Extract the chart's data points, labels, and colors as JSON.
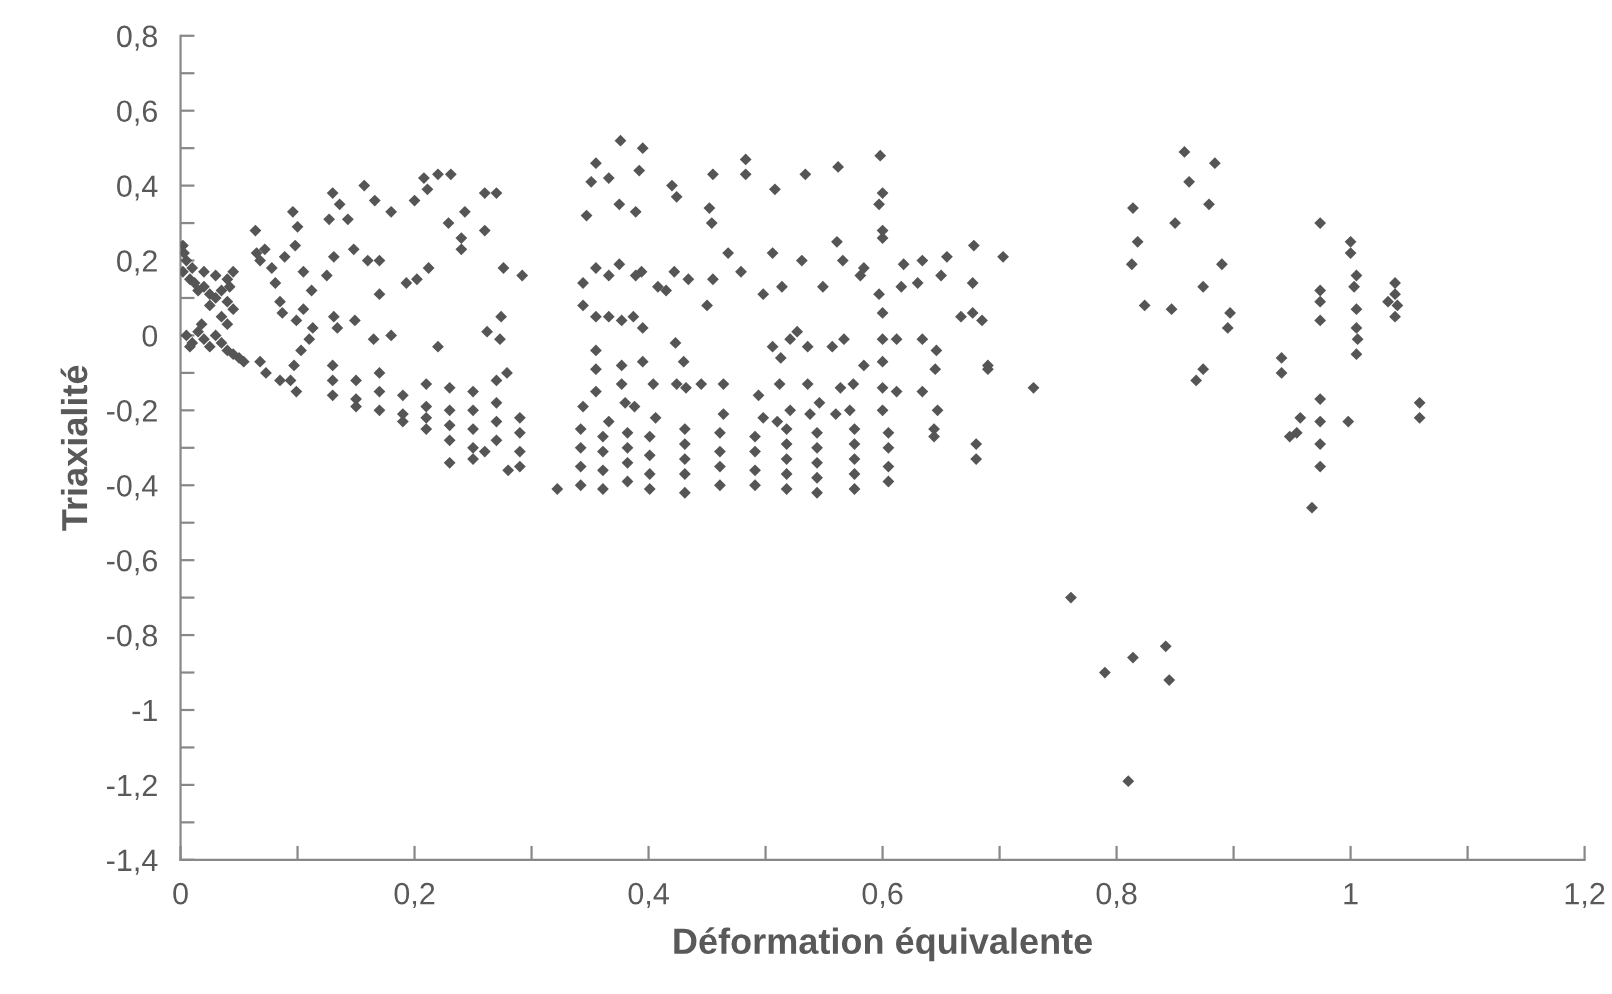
{
  "chart_data": {
    "type": "scatter",
    "xlabel": "Déformation équivalente",
    "ylabel": "Triaxialité",
    "xlim": [
      0,
      1.2
    ],
    "ylim": [
      -1.4,
      0.8
    ],
    "xticks": [
      0,
      {
        "value": 0.1,
        "label": null
      },
      {
        "value": 0.2,
        "label": "0,2"
      },
      {
        "value": 0.3,
        "label": null
      },
      {
        "value": 0.4,
        "label": "0,4"
      },
      {
        "value": 0.5,
        "label": null
      },
      {
        "value": 0.6,
        "label": "0,6"
      },
      {
        "value": 0.7,
        "label": null
      },
      {
        "value": 0.8,
        "label": "0,8"
      },
      {
        "value": 0.9,
        "label": null
      },
      1,
      {
        "value": 1.1,
        "label": null
      },
      {
        "value": 1.2,
        "label": "1,2"
      }
    ],
    "yticks": [
      {
        "value": -1.4,
        "label": "-1,4"
      },
      {
        "value": -1.3,
        "label": null
      },
      {
        "value": -1.2,
        "label": "-1,2"
      },
      {
        "value": -1.1,
        "label": null
      },
      {
        "value": -1,
        "label": "-1"
      },
      {
        "value": -0.9,
        "label": null
      },
      {
        "value": -0.8,
        "label": "-0,8"
      },
      {
        "value": -0.7,
        "label": null
      },
      {
        "value": -0.6,
        "label": "-0,6"
      },
      {
        "value": -0.5,
        "label": null
      },
      {
        "value": -0.4,
        "label": "-0,4"
      },
      {
        "value": -0.3,
        "label": null
      },
      {
        "value": -0.2,
        "label": "-0,2"
      },
      {
        "value": -0.1,
        "label": null
      },
      0,
      {
        "value": 0.1,
        "label": null
      },
      {
        "value": 0.2,
        "label": "0,2"
      },
      {
        "value": 0.3,
        "label": null
      },
      {
        "value": 0.4,
        "label": "0,4"
      },
      {
        "value": 0.5,
        "label": null
      },
      {
        "value": 0.6,
        "label": "0,6"
      },
      {
        "value": 0.7,
        "label": null
      },
      {
        "value": 0.8,
        "label": "0,8"
      }
    ],
    "grid": false,
    "legend": false,
    "marker": "diamond",
    "series": [
      {
        "color": "#555555",
        "x": [
          0.858,
          0.884,
          0.862,
          0.814,
          0.879,
          0.85,
          0.974,
          0.818,
          1.0,
          1.0,
          0.813,
          0.89,
          1.005,
          1.038,
          0.874,
          0.974,
          1.003,
          1.038,
          0.974,
          0.824,
          0.847,
          1.032,
          1.04,
          0.897,
          1.005,
          0.974,
          1.038,
          1.005,
          0.895,
          1.006,
          1.005,
          0.941,
          0.941,
          0.874,
          0.868,
          0.729,
          0.974,
          1.059,
          1.059,
          0.957,
          0.998,
          0.974,
          0.954,
          0.948,
          0.974,
          0.974,
          0.967,
          0.761,
          0.79,
          0.814,
          0.842,
          0.845,
          0.81,
          0.376,
          0.395,
          0.355,
          0.351,
          0.366,
          0.392,
          0.42,
          0.424,
          0.455,
          0.483,
          0.483,
          0.534,
          0.562,
          0.598,
          0.508,
          0.6,
          0.597,
          0.375,
          0.389,
          0.347,
          0.452,
          0.454,
          0.6,
          0.6,
          0.561,
          0.506,
          0.468,
          0.531,
          0.566,
          0.355,
          0.375,
          0.394,
          0.344,
          0.366,
          0.389,
          0.408,
          0.415,
          0.422,
          0.434,
          0.455,
          0.479,
          0.514,
          0.498,
          0.549,
          0.584,
          0.581,
          0.618,
          0.634,
          0.655,
          0.678,
          0.703,
          0.65,
          0.63,
          0.616,
          0.597,
          0.677,
          0.45,
          0.344,
          0.355,
          0.366,
          0.377,
          0.387,
          0.395,
          0.6,
          0.667,
          0.677,
          0.685,
          0.355,
          0.423,
          0.506,
          0.513,
          0.521,
          0.527,
          0.536,
          0.557,
          0.567,
          0.6,
          0.612,
          0.634,
          0.646,
          0.645,
          0.69,
          0.69,
          0.355,
          0.377,
          0.395,
          0.43,
          0.6,
          0.584,
          0.355,
          0.377,
          0.404,
          0.424,
          0.432,
          0.445,
          0.464,
          0.494,
          0.512,
          0.536,
          0.564,
          0.575,
          0.6,
          0.612,
          0.634,
          0.344,
          0.38,
          0.388,
          0.406,
          0.464,
          0.498,
          0.521,
          0.538,
          0.546,
          0.56,
          0.572,
          0.6,
          0.647,
          0.366,
          0.51,
          0.342,
          0.342,
          0.342,
          0.342,
          0.361,
          0.361,
          0.361,
          0.361,
          0.382,
          0.382,
          0.382,
          0.382,
          0.401,
          0.401,
          0.401,
          0.401,
          0.431,
          0.431,
          0.431,
          0.431,
          0.431,
          0.461,
          0.461,
          0.461,
          0.461,
          0.491,
          0.491,
          0.491,
          0.491,
          0.518,
          0.518,
          0.518,
          0.518,
          0.518,
          0.544,
          0.544,
          0.544,
          0.544,
          0.544,
          0.576,
          0.576,
          0.576,
          0.576,
          0.576,
          0.605,
          0.605,
          0.605,
          0.605,
          0.644,
          0.644,
          0.68,
          0.68,
          0.002,
          0.003,
          0.005,
          0.002,
          0.008,
          0.012,
          0.015,
          0.02,
          0.025,
          0.03,
          0.035,
          0.04,
          0.045,
          0.042,
          0.01,
          0.02,
          0.03,
          0.04,
          0.045,
          0.025,
          0.035,
          0.04,
          0.005,
          0.01,
          0.015,
          0.02,
          0.025,
          0.03,
          0.035,
          0.04,
          0.045,
          0.05,
          0.008,
          0.018,
          0.064,
          0.065,
          0.068,
          0.072,
          0.096,
          0.1,
          0.098,
          0.089,
          0.078,
          0.081,
          0.085,
          0.087,
          0.099,
          0.105,
          0.11,
          0.103,
          0.097,
          0.113,
          0.094,
          0.099,
          0.054,
          0.068,
          0.073,
          0.085,
          0.13,
          0.136,
          0.127,
          0.143,
          0.157,
          0.166,
          0.18,
          0.2,
          0.208,
          0.22,
          0.231,
          0.211,
          0.229,
          0.243,
          0.26,
          0.27,
          0.26,
          0.24,
          0.24,
          0.148,
          0.16,
          0.17,
          0.131,
          0.125,
          0.112,
          0.105,
          0.17,
          0.193,
          0.202,
          0.212,
          0.276,
          0.292,
          0.131,
          0.149,
          0.134,
          0.18,
          0.165,
          0.22,
          0.262,
          0.273,
          0.274,
          0.279,
          0.13,
          0.13,
          0.13,
          0.15,
          0.15,
          0.15,
          0.17,
          0.17,
          0.17,
          0.19,
          0.19,
          0.19,
          0.21,
          0.21,
          0.21,
          0.21,
          0.23,
          0.23,
          0.23,
          0.23,
          0.25,
          0.25,
          0.25,
          0.25,
          0.27,
          0.27,
          0.27,
          0.27,
          0.29,
          0.29,
          0.29,
          0.29,
          0.23,
          0.25,
          0.26,
          0.28,
          0.322
        ],
        "values": [
          0.49,
          0.46,
          0.41,
          0.34,
          0.35,
          0.3,
          0.3,
          0.25,
          0.25,
          0.22,
          0.19,
          0.19,
          0.16,
          0.14,
          0.13,
          0.12,
          0.13,
          0.11,
          0.09,
          0.08,
          0.07,
          0.09,
          0.08,
          0.06,
          0.07,
          0.04,
          0.05,
          0.02,
          0.02,
          -0.01,
          -0.05,
          -0.06,
          -0.1,
          -0.09,
          -0.12,
          -0.14,
          -0.17,
          -0.18,
          -0.22,
          -0.22,
          -0.23,
          -0.23,
          -0.26,
          -0.27,
          -0.29,
          -0.35,
          -0.46,
          -0.7,
          -0.9,
          -0.86,
          -0.83,
          -0.92,
          -1.19,
          0.52,
          0.5,
          0.46,
          0.41,
          0.42,
          0.44,
          0.4,
          0.37,
          0.43,
          0.47,
          0.43,
          0.43,
          0.45,
          0.48,
          0.39,
          0.38,
          0.35,
          0.35,
          0.33,
          0.32,
          0.34,
          0.3,
          0.28,
          0.26,
          0.25,
          0.22,
          0.22,
          0.2,
          0.2,
          0.18,
          0.19,
          0.17,
          0.14,
          0.16,
          0.16,
          0.13,
          0.12,
          0.17,
          0.15,
          0.15,
          0.17,
          0.13,
          0.11,
          0.13,
          0.18,
          0.16,
          0.19,
          0.2,
          0.21,
          0.24,
          0.21,
          0.16,
          0.14,
          0.13,
          0.11,
          0.14,
          0.08,
          0.08,
          0.05,
          0.05,
          0.04,
          0.05,
          0.02,
          0.06,
          0.05,
          0.06,
          0.04,
          -0.04,
          -0.02,
          -0.03,
          -0.06,
          -0.01,
          0.01,
          -0.03,
          -0.03,
          -0.01,
          -0.01,
          -0.01,
          -0.01,
          -0.04,
          -0.09,
          -0.08,
          -0.09,
          -0.09,
          -0.08,
          -0.07,
          -0.07,
          -0.07,
          -0.08,
          -0.15,
          -0.13,
          -0.13,
          -0.13,
          -0.14,
          -0.13,
          -0.13,
          -0.16,
          -0.13,
          -0.13,
          -0.14,
          -0.13,
          -0.14,
          -0.15,
          -0.15,
          -0.19,
          -0.18,
          -0.19,
          -0.22,
          -0.21,
          -0.22,
          -0.2,
          -0.21,
          -0.18,
          -0.21,
          -0.2,
          -0.2,
          -0.2,
          -0.23,
          -0.23,
          -0.25,
          -0.3,
          -0.35,
          -0.4,
          -0.27,
          -0.31,
          -0.36,
          -0.41,
          -0.26,
          -0.3,
          -0.34,
          -0.39,
          -0.27,
          -0.32,
          -0.37,
          -0.41,
          -0.25,
          -0.29,
          -0.33,
          -0.37,
          -0.42,
          -0.26,
          -0.31,
          -0.35,
          -0.4,
          -0.27,
          -0.31,
          -0.36,
          -0.4,
          -0.25,
          -0.29,
          -0.33,
          -0.37,
          -0.41,
          -0.26,
          -0.3,
          -0.34,
          -0.38,
          -0.42,
          -0.25,
          -0.29,
          -0.33,
          -0.37,
          -0.41,
          -0.26,
          -0.3,
          -0.35,
          -0.39,
          -0.25,
          -0.27,
          -0.29,
          -0.33,
          0.24,
          0.22,
          0.2,
          0.17,
          0.15,
          0.14,
          0.12,
          0.13,
          0.11,
          0.1,
          0.12,
          0.09,
          0.07,
          0.13,
          0.18,
          0.17,
          0.16,
          0.15,
          0.17,
          0.08,
          0.05,
          0.03,
          0.0,
          -0.02,
          0.01,
          -0.01,
          -0.03,
          0.0,
          -0.02,
          -0.04,
          -0.05,
          -0.06,
          -0.03,
          0.03,
          0.28,
          0.22,
          0.2,
          0.23,
          0.33,
          0.29,
          0.24,
          0.21,
          0.18,
          0.14,
          0.09,
          0.06,
          0.04,
          0.07,
          -0.01,
          -0.04,
          -0.08,
          0.02,
          -0.12,
          -0.15,
          -0.07,
          -0.07,
          -0.1,
          -0.12,
          0.38,
          0.35,
          0.31,
          0.31,
          0.4,
          0.36,
          0.33,
          0.36,
          0.42,
          0.43,
          0.43,
          0.39,
          0.3,
          0.33,
          0.38,
          0.38,
          0.28,
          0.26,
          0.23,
          0.23,
          0.2,
          0.2,
          0.21,
          0.16,
          0.12,
          0.17,
          0.11,
          0.14,
          0.15,
          0.18,
          0.18,
          0.16,
          0.05,
          0.04,
          0.02,
          0.0,
          -0.01,
          -0.03,
          0.01,
          -0.01,
          0.05,
          -0.1,
          -0.08,
          -0.12,
          -0.16,
          -0.12,
          -0.17,
          -0.19,
          -0.1,
          -0.15,
          -0.2,
          -0.16,
          -0.21,
          -0.23,
          -0.13,
          -0.19,
          -0.22,
          -0.25,
          -0.14,
          -0.2,
          -0.24,
          -0.28,
          -0.15,
          -0.2,
          -0.25,
          -0.3,
          -0.12,
          -0.18,
          -0.23,
          -0.28,
          -0.22,
          -0.26,
          -0.31,
          -0.35,
          -0.34,
          -0.33,
          -0.31,
          -0.36,
          -0.41
        ]
      }
    ]
  }
}
